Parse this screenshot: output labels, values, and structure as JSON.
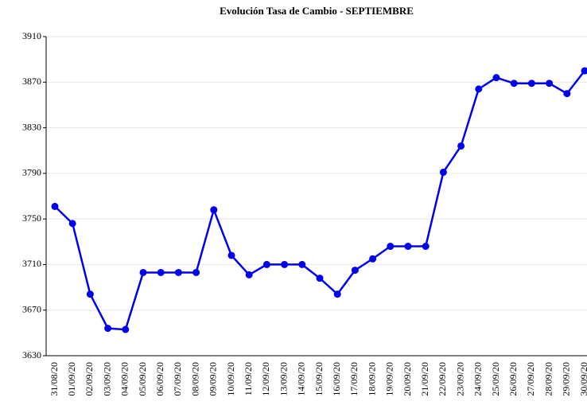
{
  "chart_data": {
    "type": "line",
    "title": "Evolución Tasa de Cambio - SEPTIEMBRE",
    "categories": [
      "31/08/20",
      "01/09/20",
      "02/09/20",
      "03/09/20",
      "04/09/20",
      "05/09/20",
      "06/09/20",
      "07/09/20",
      "08/09/20",
      "09/09/20",
      "10/09/20",
      "11/09/20",
      "12/09/20",
      "13/09/20",
      "14/09/20",
      "15/09/20",
      "16/09/20",
      "17/09/20",
      "18/09/20",
      "19/09/20",
      "20/09/20",
      "21/09/20",
      "22/09/20",
      "23/09/20",
      "24/09/20",
      "25/09/20",
      "26/09/20",
      "27/09/20",
      "28/09/20",
      "29/09/20",
      "30/09/20"
    ],
    "series": [
      {
        "color": "#0000ee",
        "values": [
          3761,
          3746,
          3684,
          3654,
          3653,
          3703,
          3703,
          3703,
          3703,
          3758,
          3718,
          3701,
          3710,
          3710,
          3710,
          3698,
          3684,
          3705,
          3715,
          3726,
          3726,
          3726,
          3791,
          3814,
          3864,
          3874,
          3869,
          3869,
          3869,
          3860,
          3880
        ]
      }
    ],
    "ylim": [
      3630,
      3910
    ],
    "yticks": [
      3630,
      3670,
      3710,
      3750,
      3790,
      3830,
      3870,
      3910
    ],
    "grid": true
  }
}
